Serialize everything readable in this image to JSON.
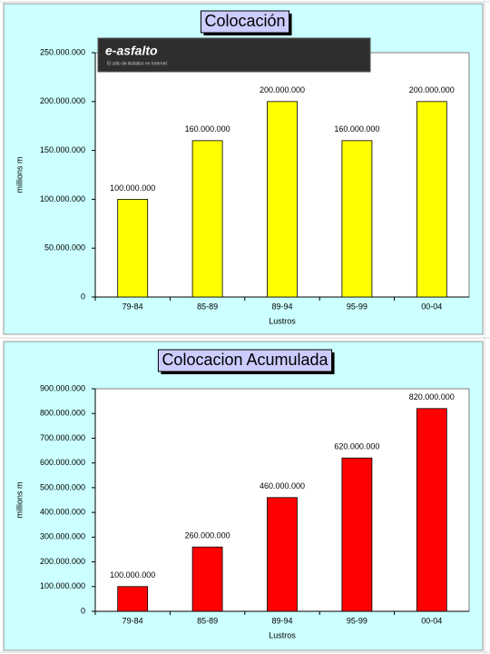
{
  "chart_data": [
    {
      "type": "bar",
      "title": "Colocación",
      "x_label": "Lustros",
      "y_label": "millions m",
      "logo_text": "e-asfalto",
      "logo_tagline": "El sitio de Asfaltos en Internet",
      "categories": [
        "79-84",
        "85-89",
        "89-94",
        "95-99",
        "00-04"
      ],
      "values": [
        100000000,
        160000000,
        200000000,
        160000000,
        200000000
      ],
      "value_labels": [
        "100.000.000",
        "160.000.000",
        "200.000.000",
        "160.000.000",
        "200.000.000"
      ],
      "color": "#ffff00",
      "ylim": [
        0,
        250000000
      ],
      "yticks": [
        0,
        {
          "value": 50000000,
          "label": "50.000.000"
        },
        {
          "value": 100000000,
          "label": "100.000.000"
        },
        {
          "value": 150000000,
          "label": "150.000.000"
        },
        {
          "value": 200000000,
          "label": "200.000.000"
        },
        {
          "value": 250000000,
          "label": "250.000.000"
        }
      ],
      "grid": false
    },
    {
      "type": "bar",
      "title": "Colocacion Acumulada",
      "x_label": "Lustros",
      "y_label": "millions m",
      "categories": [
        "79-84",
        "85-89",
        "89-94",
        "95-99",
        "00-04"
      ],
      "values": [
        100000000,
        260000000,
        460000000,
        620000000,
        820000000
      ],
      "value_labels": [
        "100.000.000",
        "260.000.000",
        "460.000.000",
        "620.000.000",
        "820.000.000"
      ],
      "color": "#ff0000",
      "ylim": [
        0,
        900000000
      ],
      "yticks": [
        0,
        {
          "value": 100000000,
          "label": "100.000.000"
        },
        {
          "value": 200000000,
          "label": "200.000.000"
        },
        {
          "value": 300000000,
          "label": "300.000.000"
        },
        {
          "value": 400000000,
          "label": "400.000.000"
        },
        {
          "value": 500000000,
          "label": "500.000.000"
        },
        {
          "value": 600000000,
          "label": "600.000.000"
        },
        {
          "value": 700000000,
          "label": "700.000.000"
        },
        {
          "value": 800000000,
          "label": "800.000.000"
        },
        {
          "value": 900000000,
          "label": "900.000.000"
        }
      ],
      "grid": false
    }
  ]
}
